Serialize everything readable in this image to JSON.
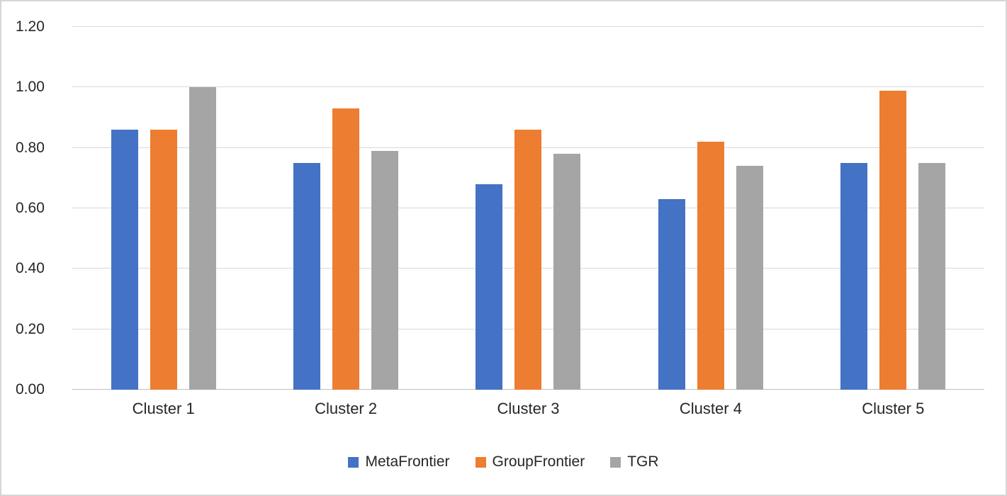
{
  "chart_data": {
    "type": "bar",
    "title": "",
    "xlabel": "",
    "ylabel": "",
    "categories": [
      "Cluster 1",
      "Cluster 2",
      "Cluster 3",
      "Cluster 4",
      "Cluster 5"
    ],
    "series": [
      {
        "name": "MetaFrontier",
        "color": "#4472c4",
        "values": [
          0.86,
          0.75,
          0.68,
          0.63,
          0.75
        ]
      },
      {
        "name": "GroupFrontier",
        "color": "#ed7d31",
        "values": [
          0.86,
          0.93,
          0.86,
          0.82,
          0.99
        ]
      },
      {
        "name": "TGR",
        "color": "#a5a5a5",
        "values": [
          1.0,
          0.79,
          0.78,
          0.74,
          0.75
        ]
      }
    ],
    "ylim": [
      0,
      1.2
    ],
    "yticks": [
      "0.00",
      "0.20",
      "0.40",
      "0.60",
      "0.80",
      "1.00",
      "1.20"
    ],
    "grid": true,
    "legend_position": "bottom",
    "gridline_color": "#d9d9d9"
  }
}
